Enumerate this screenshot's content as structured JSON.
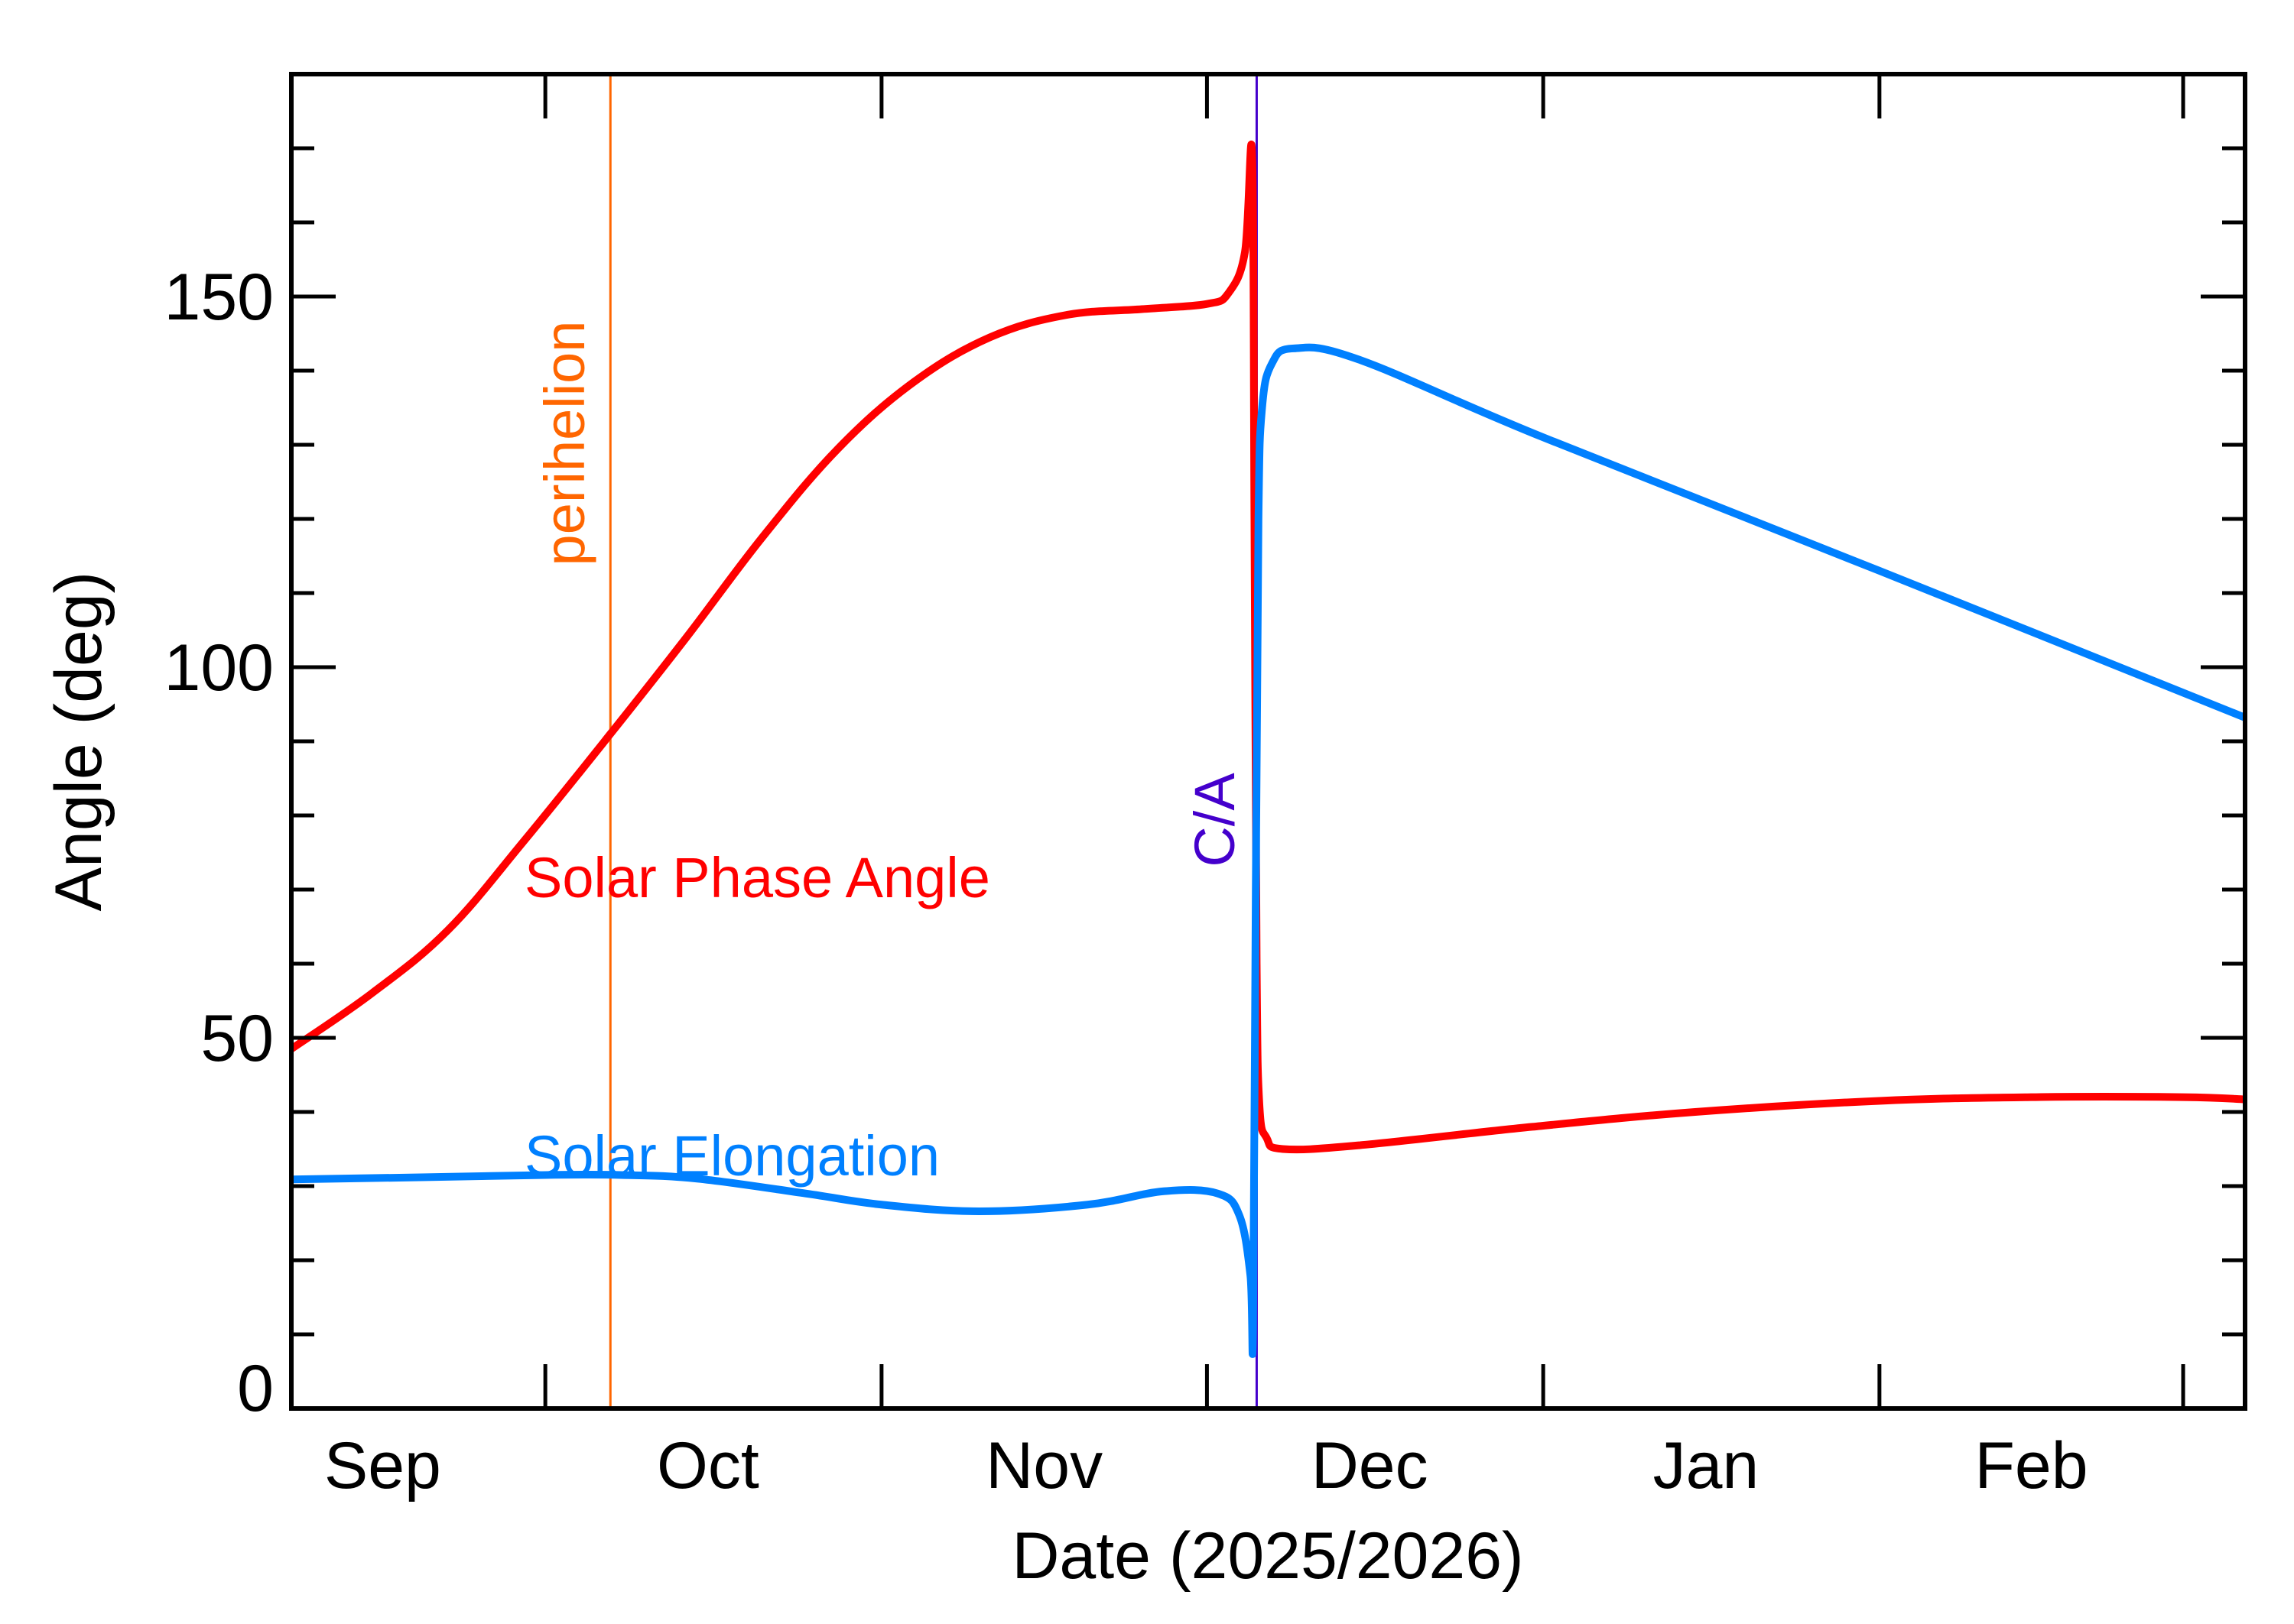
{
  "chart_data": {
    "type": "line",
    "title": "",
    "xlabel": "Date (2025/2026)",
    "ylabel": "Angle (deg)",
    "xlim": [
      "2025-09-07T14:00",
      "2026-03-06T17:00"
    ],
    "ylim": [
      0,
      180
    ],
    "grid": false,
    "x_tick_positions": [
      "2025-10-01",
      "2025-11-01",
      "2025-12-01",
      "2026-01-01",
      "2026-02-01",
      "2026-03-01"
    ],
    "x_tick_labels": [
      {
        "label": "Sep",
        "date": "2025-09-16"
      },
      {
        "label": "Oct",
        "date": "2025-10-16"
      },
      {
        "label": "Nov",
        "date": "2025-11-16"
      },
      {
        "label": "Dec",
        "date": "2025-12-16"
      },
      {
        "label": "Jan",
        "date": "2026-01-16"
      },
      {
        "label": "Feb",
        "date": "2026-02-15"
      }
    ],
    "y_ticks": [
      0,
      50,
      100,
      150
    ],
    "y_minor_step": 10,
    "series": [
      {
        "name": "Solar Phase Angle",
        "color": "#ff0000",
        "points": [
          [
            "2025-09-07T14:00",
            48.5
          ],
          [
            "2025-09-15",
            56
          ],
          [
            "2025-09-22",
            64.5
          ],
          [
            "2025-09-29",
            76.5
          ],
          [
            "2025-10-07",
            91
          ],
          [
            "2025-10-14",
            104
          ],
          [
            "2025-10-21",
            117.5
          ],
          [
            "2025-10-28",
            129.5
          ],
          [
            "2025-11-04",
            138.5
          ],
          [
            "2025-11-11",
            144.5
          ],
          [
            "2025-11-18",
            147.5
          ],
          [
            "2025-11-25",
            148.3
          ],
          [
            "2025-12-01",
            149
          ],
          [
            "2025-12-03",
            150.5
          ],
          [
            "2025-12-04T12:00",
            156
          ],
          [
            "2025-12-05T04:00",
            169
          ],
          [
            "2025-12-05T09:00",
            120
          ],
          [
            "2025-12-05T14:00",
            60
          ],
          [
            "2025-12-05T20:00",
            41
          ],
          [
            "2025-12-06T12:00",
            36.5
          ],
          [
            "2025-12-08",
            35
          ],
          [
            "2025-12-15",
            35.5
          ],
          [
            "2025-12-31",
            38
          ],
          [
            "2026-01-15",
            40
          ],
          [
            "2026-02-01",
            41.5
          ],
          [
            "2026-02-15",
            42
          ],
          [
            "2026-03-01",
            42
          ],
          [
            "2026-03-06T17:00",
            41.7
          ]
        ]
      },
      {
        "name": "Solar Elongation",
        "color": "#0080ff",
        "points": [
          [
            "2025-09-07T14:00",
            30.9
          ],
          [
            "2025-09-20",
            31.2
          ],
          [
            "2025-10-01",
            31.5
          ],
          [
            "2025-10-08",
            31.5
          ],
          [
            "2025-10-15",
            31
          ],
          [
            "2025-10-25",
            29
          ],
          [
            "2025-11-01",
            27.5
          ],
          [
            "2025-11-10",
            26.6
          ],
          [
            "2025-11-20",
            27.5
          ],
          [
            "2025-11-27",
            29.3
          ],
          [
            "2025-12-02",
            29
          ],
          [
            "2025-12-04",
            26
          ],
          [
            "2025-12-05",
            18
          ],
          [
            "2025-12-05T06:00",
            10.5
          ],
          [
            "2025-12-05T12:00",
            70
          ],
          [
            "2025-12-05T18:00",
            120
          ],
          [
            "2025-12-06T02:00",
            135
          ],
          [
            "2025-12-07",
            141
          ],
          [
            "2025-12-09",
            143
          ],
          [
            "2025-12-15",
            141.5
          ],
          [
            "2026-01-01",
            131
          ],
          [
            "2026-02-01",
            113
          ],
          [
            "2026-03-06T17:00",
            93.2
          ]
        ]
      }
    ],
    "annotations": [
      {
        "label": "perihelion",
        "date": "2025-10-07",
        "color": "#ff6600"
      },
      {
        "label": "C/A",
        "date": "2025-12-05T14:00",
        "color": "#4400cc"
      }
    ],
    "legend": [
      {
        "label": "Solar Phase Angle",
        "color": "#ff0000"
      },
      {
        "label": "Solar Elongation",
        "color": "#0080ff"
      }
    ],
    "legend_placement": "inside-left"
  }
}
